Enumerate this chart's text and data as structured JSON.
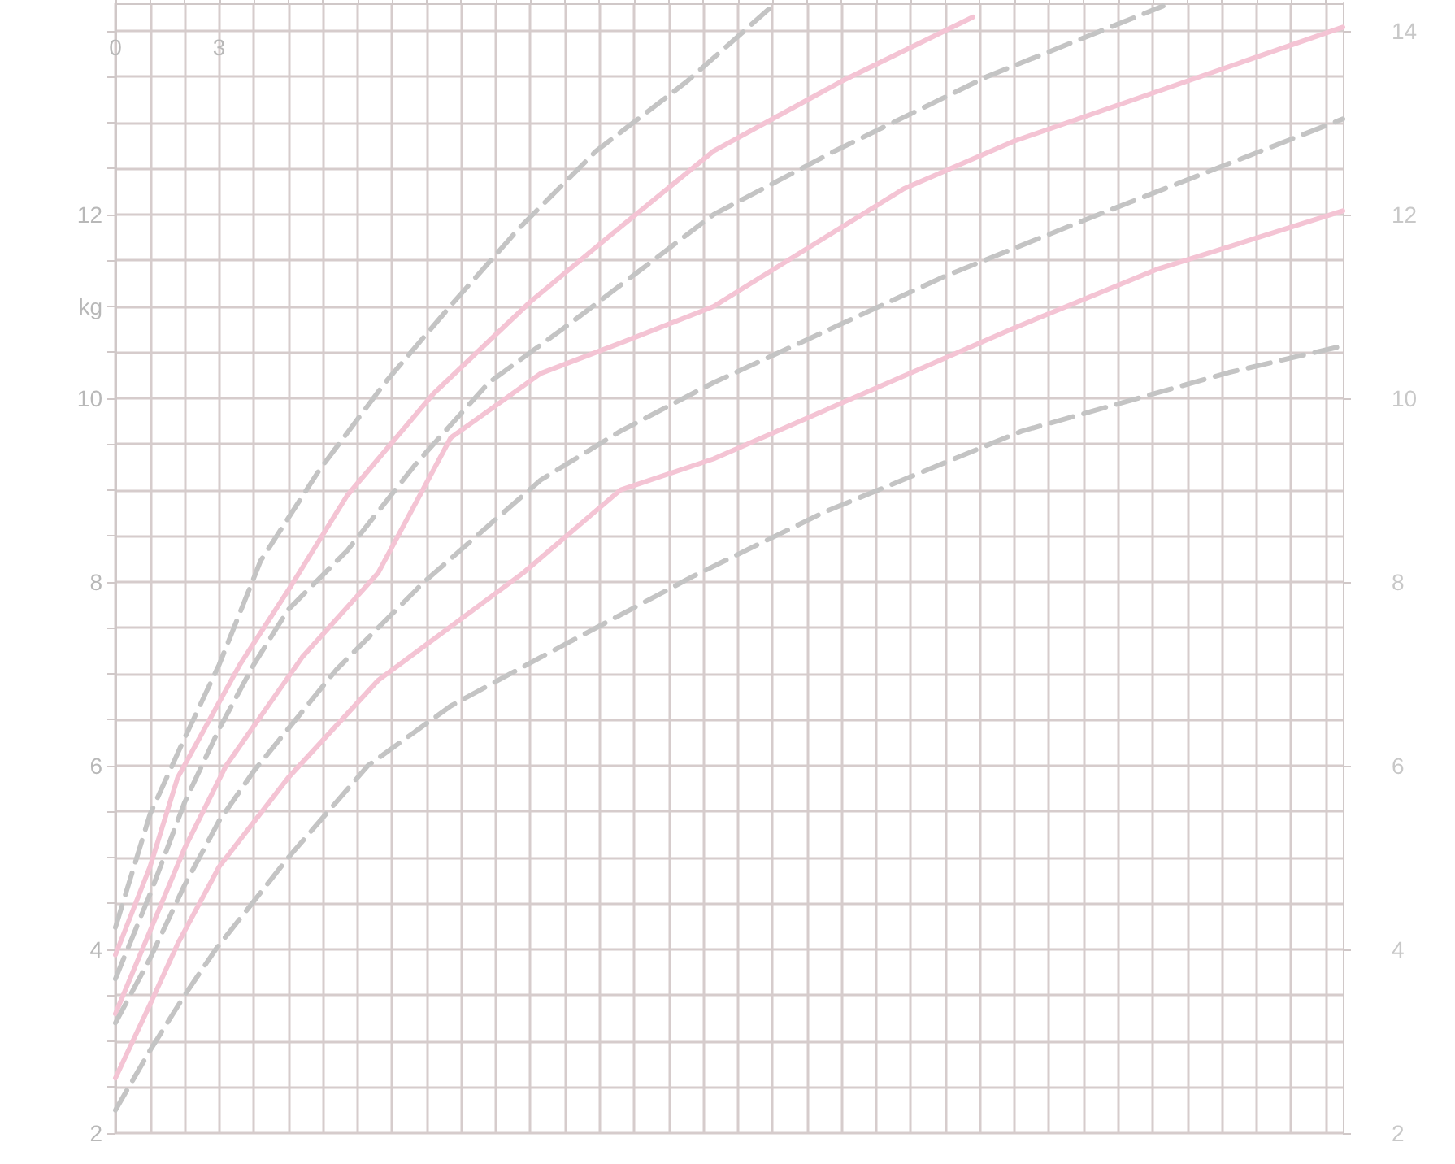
{
  "chart_data": {
    "type": "line",
    "xlim": [
      0,
      35.5
    ],
    "ylim": [
      2,
      14.3
    ],
    "xticks": [
      0,
      {
        "value": 1,
        "label": null
      },
      {
        "value": 2,
        "label": null
      },
      3,
      {
        "value": 4,
        "label": null
      },
      {
        "value": 5,
        "label": null
      },
      {
        "value": 6,
        "label": null
      },
      {
        "value": 7,
        "label": null
      },
      {
        "value": 8,
        "label": null
      },
      {
        "value": 9,
        "label": null
      },
      {
        "value": 10,
        "label": null
      },
      {
        "value": 11,
        "label": null
      },
      {
        "value": 12,
        "label": null
      },
      {
        "value": 13,
        "label": null
      },
      {
        "value": 14,
        "label": null
      },
      {
        "value": 15,
        "label": null
      },
      {
        "value": 16,
        "label": null
      },
      {
        "value": 17,
        "label": null
      },
      {
        "value": 18,
        "label": null
      },
      {
        "value": 19,
        "label": null
      },
      {
        "value": 20,
        "label": null
      },
      {
        "value": 21,
        "label": null
      },
      {
        "value": 22,
        "label": null
      },
      {
        "value": 23,
        "label": null
      },
      {
        "value": 24,
        "label": null
      },
      {
        "value": 25,
        "label": null
      },
      {
        "value": 26,
        "label": null
      },
      {
        "value": 27,
        "label": null
      },
      {
        "value": 28,
        "label": null
      },
      {
        "value": 29,
        "label": null
      },
      {
        "value": 30,
        "label": null
      },
      {
        "value": 31,
        "label": null
      },
      {
        "value": 32,
        "label": null
      },
      {
        "value": 33,
        "label": null
      },
      {
        "value": 34,
        "label": null
      },
      {
        "value": 35,
        "label": null
      }
    ],
    "yticks": [
      2,
      {
        "value": 2.5,
        "label": null
      },
      {
        "value": 3,
        "label": null
      },
      {
        "value": 3.5,
        "label": null
      },
      4,
      {
        "value": 4.5,
        "label": null
      },
      {
        "value": 5,
        "label": null
      },
      {
        "value": 5.5,
        "label": null
      },
      6,
      {
        "value": 6.5,
        "label": null
      },
      {
        "value": 7,
        "label": null
      },
      {
        "value": 7.5,
        "label": null
      },
      8,
      {
        "value": 8.5,
        "label": null
      },
      {
        "value": 9,
        "label": null
      },
      {
        "value": 9.5,
        "label": null
      },
      10,
      {
        "value": 10.5,
        "label": null
      },
      {
        "value": 11,
        "label": "kg"
      },
      {
        "value": 11.5,
        "label": null
      },
      12,
      {
        "value": 12.5,
        "label": null
      },
      {
        "value": 13,
        "label": null
      },
      {
        "value": 13.5,
        "label": null
      },
      {
        "value": 14,
        "label": null
      }
    ],
    "y2lim": [
      2,
      14.3
    ],
    "y2ticks": [
      2,
      4,
      6,
      8,
      10,
      12,
      14
    ],
    "grid": true,
    "marker": "none",
    "series": [
      {
        "color": "#c4c4c4",
        "line_style": "dashed",
        "x": [
          0,
          1,
          2,
          3,
          4.2,
          5.9,
          7.8,
          9.7,
          11.7,
          13.9,
          16.5,
          19
        ],
        "values": [
          4.24,
          5.47,
          6.3,
          7.1,
          8.23,
          9.22,
          10.17,
          11.01,
          11.86,
          12.69,
          13.44,
          14.27
        ]
      },
      {
        "color": "#f4c4d4",
        "line_style": "solid",
        "x": [
          0,
          1,
          1.8,
          3.6,
          5.1,
          6.7,
          9.2,
          12,
          14.4,
          17.3,
          21,
          24.8
        ],
        "values": [
          3.94,
          4.9,
          5.87,
          7.1,
          7.97,
          8.94,
          10.05,
          11.05,
          11.8,
          12.69,
          13.45,
          14.15
        ]
      },
      {
        "color": "#c4c4c4",
        "line_style": "dashed",
        "x": [
          0,
          1,
          2,
          3,
          4,
          5,
          6.7,
          8.7,
          10.8,
          13.1,
          17.3,
          20.8,
          25.2,
          30.3
        ],
        "values": [
          3.68,
          4.6,
          5.6,
          6.4,
          7.1,
          7.7,
          8.34,
          9.29,
          10.17,
          10.8,
          12.0,
          12.69,
          13.5,
          14.27
        ]
      },
      {
        "color": "#f4c4d4",
        "line_style": "solid",
        "x": [
          0,
          1,
          2,
          3.2,
          5.4,
          7.6,
          9.7,
          12.3,
          14.6,
          17.3,
          22.8,
          26,
          35.5
        ],
        "values": [
          3.3,
          4.2,
          5.1,
          6.0,
          7.18,
          8.1,
          9.57,
          10.27,
          10.6,
          11.0,
          12.28,
          12.8,
          14.04
        ]
      },
      {
        "color": "#c4c4c4",
        "line_style": "dashed",
        "x": [
          0,
          1,
          2,
          3,
          4,
          6.4,
          8.9,
          12.3,
          14.6,
          17.3,
          24,
          28.3,
          35.5
        ],
        "values": [
          3.2,
          3.9,
          4.7,
          5.4,
          5.94,
          7.05,
          7.99,
          9.11,
          9.64,
          10.17,
          11.33,
          11.98,
          13.04
        ]
      },
      {
        "color": "#f4c4d4",
        "line_style": "solid",
        "x": [
          0,
          1,
          1.8,
          3,
          5,
          7.6,
          11.8,
          14.6,
          17.3,
          25.9,
          30.1,
          35.5
        ],
        "values": [
          2.6,
          3.4,
          4.06,
          4.9,
          5.87,
          6.93,
          8.1,
          9.0,
          9.34,
          10.75,
          11.4,
          12.04
        ]
      },
      {
        "color": "#c4c4c4",
        "line_style": "dashed",
        "x": [
          0,
          1,
          2,
          2.9,
          5,
          7.3,
          9.7,
          12.3,
          16.7,
          20.5,
          26.2,
          32.2,
          35.5
        ],
        "values": [
          2.25,
          2.9,
          3.5,
          4.0,
          5.0,
          6.0,
          6.65,
          7.18,
          8.06,
          8.76,
          9.64,
          10.28,
          10.57
        ]
      }
    ]
  }
}
